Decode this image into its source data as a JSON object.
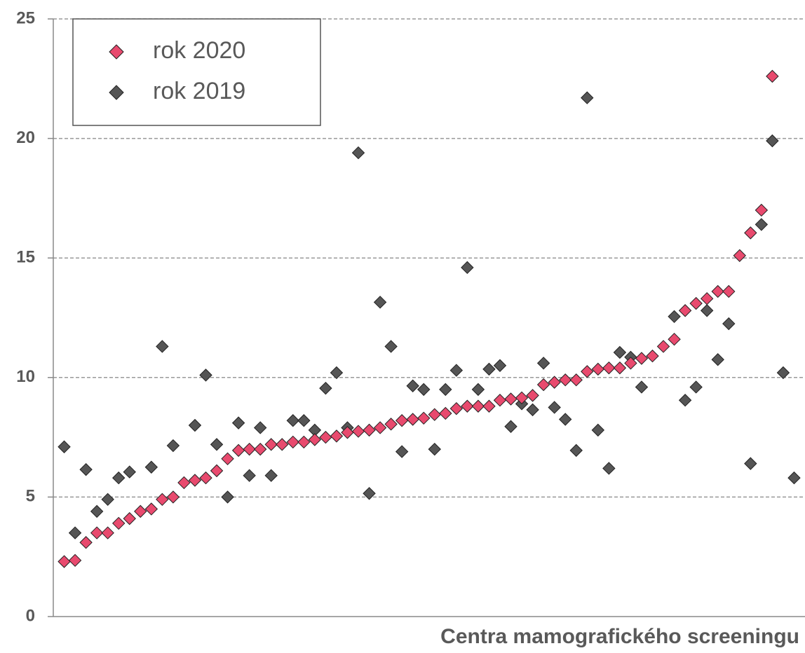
{
  "chart_data": {
    "type": "scatter",
    "x_label": "Centra mamografického screeningu",
    "x": [
      1,
      2,
      3,
      4,
      5,
      6,
      7,
      8,
      9,
      10,
      11,
      12,
      13,
      14,
      15,
      16,
      17,
      18,
      19,
      20,
      21,
      22,
      23,
      24,
      25,
      26,
      27,
      28,
      29,
      30,
      31,
      32,
      33,
      34,
      35,
      36,
      37,
      38,
      39,
      40,
      41,
      42,
      43,
      44,
      45,
      46,
      47,
      48,
      49,
      50,
      51,
      52,
      53,
      54,
      55,
      56,
      57,
      58,
      59,
      60,
      61,
      62,
      63,
      64,
      65,
      66,
      67,
      68
    ],
    "xlim": [
      0,
      69
    ],
    "ylim": [
      0,
      25
    ],
    "yticks": [
      0,
      5,
      10,
      15,
      20,
      25
    ],
    "grid": true,
    "legend": "upper left",
    "series": [
      {
        "name": "rok 2020",
        "color": "#e84a6e",
        "values": [
          2.3,
          2.35,
          3.1,
          3.5,
          3.5,
          3.9,
          4.1,
          4.4,
          4.5,
          4.9,
          5.0,
          5.6,
          5.7,
          5.8,
          6.1,
          6.6,
          6.95,
          7.0,
          7.0,
          7.2,
          7.2,
          7.3,
          7.3,
          7.4,
          7.5,
          7.55,
          7.7,
          7.75,
          7.8,
          7.9,
          8.05,
          8.2,
          8.25,
          8.3,
          8.45,
          8.5,
          8.7,
          8.8,
          8.8,
          8.8,
          9.05,
          9.1,
          9.15,
          9.25,
          9.7,
          9.8,
          9.9,
          9.9,
          10.25,
          10.35,
          10.4,
          10.4,
          10.6,
          10.8,
          10.9,
          11.3,
          11.6,
          12.8,
          13.1,
          13.3,
          13.6,
          13.6,
          15.1,
          16.05,
          17.0,
          22.6,
          null,
          null
        ]
      },
      {
        "name": "rok 2019",
        "color": "#555555",
        "values": [
          7.1,
          3.5,
          6.15,
          4.4,
          4.9,
          5.8,
          6.05,
          null,
          6.25,
          11.3,
          7.15,
          null,
          8.0,
          10.1,
          7.2,
          5.0,
          8.1,
          5.9,
          7.9,
          5.9,
          null,
          8.2,
          8.2,
          7.8,
          9.55,
          10.2,
          7.9,
          19.4,
          5.15,
          13.15,
          11.3,
          6.9,
          9.65,
          9.5,
          7.0,
          9.5,
          10.3,
          14.6,
          9.5,
          10.35,
          10.5,
          7.95,
          8.9,
          8.65,
          10.6,
          8.75,
          8.25,
          6.95,
          21.7,
          7.8,
          6.2,
          11.05,
          10.85,
          9.6,
          null,
          null,
          12.55,
          9.05,
          9.6,
          12.8,
          10.75,
          12.25,
          null,
          6.4,
          16.4,
          19.9,
          10.2,
          5.8
        ]
      }
    ]
  }
}
